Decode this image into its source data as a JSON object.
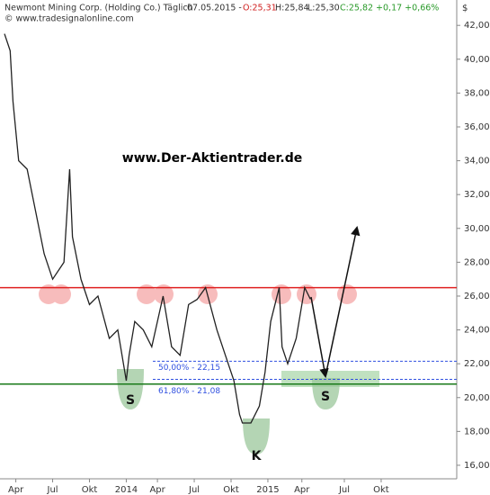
{
  "chart_data": {
    "type": "line",
    "header": {
      "symbol": "Newmont Mining Corp. (Holding Co.) Täglich",
      "date": "07.05.2015 -",
      "open": "O:25,31",
      "high": "H:25,84",
      "low": "L:25,30",
      "close": "C:25,82 +0,17 +0,66%",
      "source": "© www.tradesignalonline.com",
      "currency": "$"
    },
    "watermark": "www.Der-Aktientrader.de",
    "x": [
      0,
      2,
      3,
      5,
      8,
      11,
      14,
      17,
      21,
      23,
      24,
      27,
      30,
      33,
      37,
      40,
      43,
      44,
      46,
      49,
      52,
      56,
      59,
      62,
      65,
      68,
      71,
      75,
      78,
      81,
      83,
      84,
      87,
      90,
      92,
      94,
      97,
      98,
      100,
      103,
      106,
      108
    ],
    "series": [
      {
        "color": "#222222",
        "values": [
          41.5,
          40.5,
          37.5,
          34,
          33.5,
          31,
          28.5,
          27,
          28,
          33.5,
          29.5,
          27,
          25.5,
          26,
          23.5,
          24,
          21,
          22.5,
          24.5,
          24,
          23,
          26,
          23,
          22.5,
          25.5,
          25.8,
          26.5,
          24,
          22.5,
          21,
          19,
          18.5,
          18.5,
          19.5,
          21.5,
          24.5,
          26.5,
          23,
          22,
          23.5,
          26.5,
          25.82
        ]
      }
    ],
    "levels": [
      {
        "value": 26.5,
        "color": "#e02020"
      },
      {
        "value": 20.8,
        "color": "#1a7a1a"
      },
      {
        "value": 22.15,
        "color": "#3050e0",
        "label": "50,00% - 22,15"
      },
      {
        "value": 21.08,
        "color": "#3050e0",
        "label": "61,80% - 21,08"
      }
    ],
    "pattern_labels": [
      "S",
      "K",
      "S"
    ],
    "xlim": [
      0,
      160
    ],
    "xticks": [
      {
        "value": 4,
        "label": "Apr"
      },
      {
        "value": 17,
        "label": "Jul"
      },
      {
        "value": 30,
        "label": "Okt"
      },
      {
        "value": 43,
        "label": "2014"
      },
      {
        "value": 54,
        "label": "Apr"
      },
      {
        "value": 67,
        "label": "Jul"
      },
      {
        "value": 80,
        "label": "Okt"
      },
      {
        "value": 93,
        "label": "2015"
      },
      {
        "value": 105,
        "label": "Apr"
      },
      {
        "value": 120,
        "label": "Jul"
      },
      {
        "value": 133,
        "label": "Okt"
      }
    ],
    "ylim": [
      15.2,
      43.5
    ],
    "yticks": [
      {
        "value": 16,
        "label": "16,00"
      },
      {
        "value": 18,
        "label": "18,00"
      },
      {
        "value": 20,
        "label": "20,00"
      },
      {
        "value": 22,
        "label": "22,00"
      },
      {
        "value": 24,
        "label": "24,00"
      },
      {
        "value": 26,
        "label": "26,00"
      },
      {
        "value": 28,
        "label": "28,00"
      },
      {
        "value": 30,
        "label": "30,00"
      },
      {
        "value": 32,
        "label": "32,00"
      },
      {
        "value": 34,
        "label": "34,00"
      },
      {
        "value": 36,
        "label": "36,00"
      },
      {
        "value": 38,
        "label": "38,00"
      },
      {
        "value": 40,
        "label": "40,00"
      },
      {
        "value": 42,
        "label": "42,00"
      }
    ]
  }
}
